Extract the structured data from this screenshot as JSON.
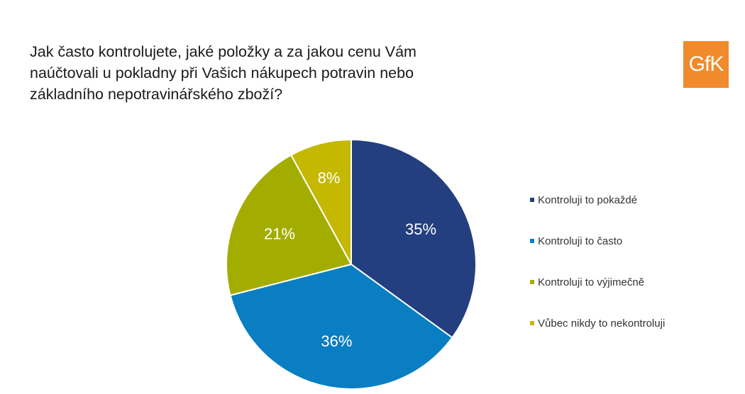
{
  "question": [
    "Jak často kontrolujete, jaké položky a za jakou cenu Vám",
    "naúčtovali u pokladny při Vašich nákupech potravin nebo",
    "základního nepotravinářského zboží?"
  ],
  "logo_text": "GfK",
  "colors": {
    "logo_bg": "#f08a2b"
  },
  "chart_data": {
    "type": "pie",
    "title": "",
    "categories": [
      "Kontroluji to pokaždé",
      "Kontroluji to často",
      "Kontroluji to výjimečně",
      "Vůbec nikdy to nekontroluji"
    ],
    "values": [
      35,
      36,
      21,
      8
    ],
    "labels": [
      "35%",
      "36%",
      "21%",
      "8%"
    ],
    "colors": [
      "#243f7f",
      "#0a7ec2",
      "#a3ad00",
      "#c4b800"
    ],
    "legend_position": "right"
  }
}
